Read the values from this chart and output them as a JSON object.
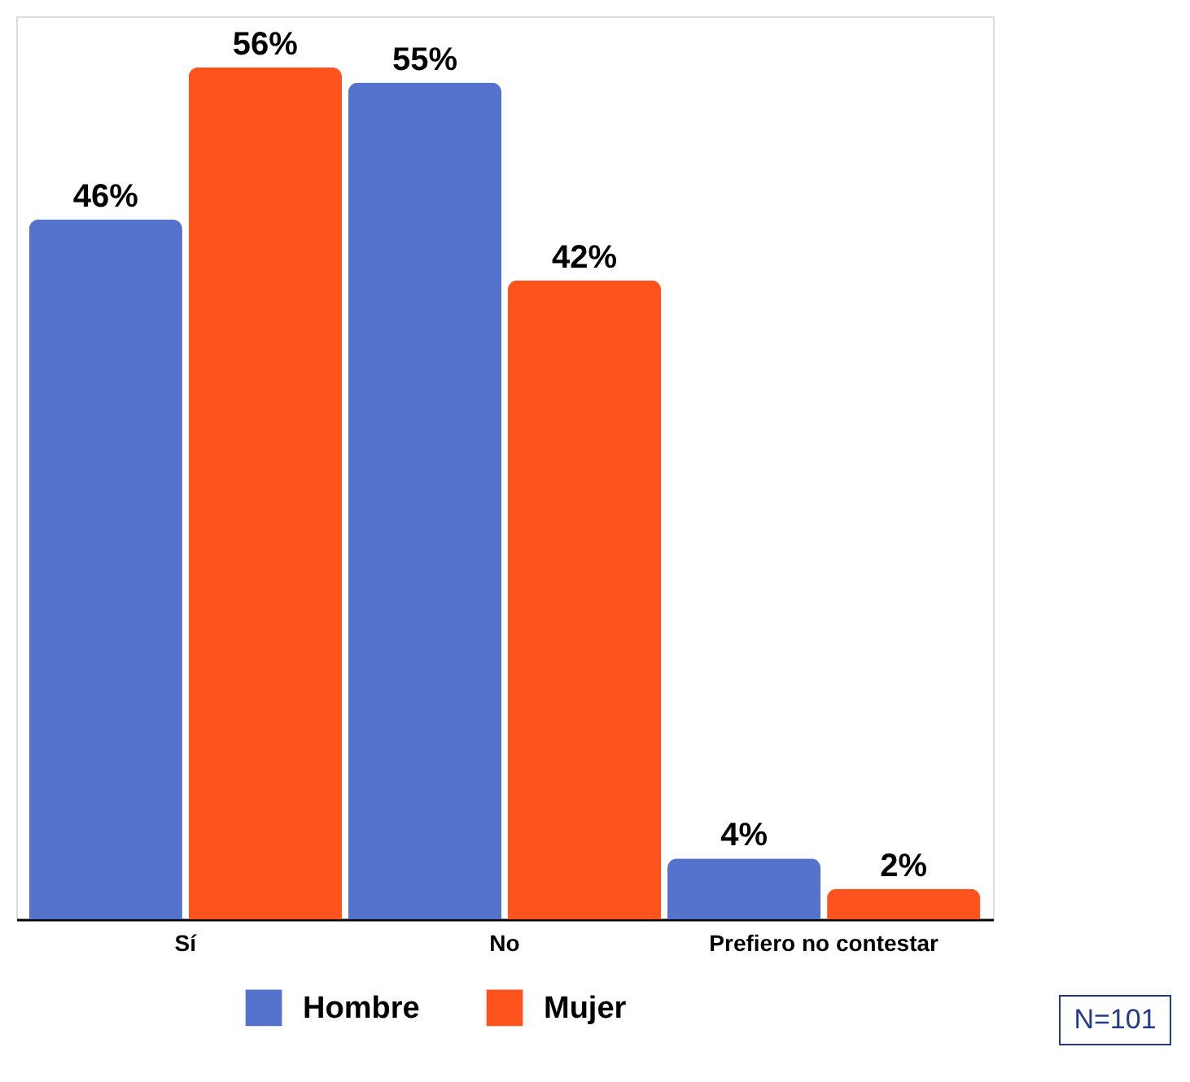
{
  "chart_data": {
    "type": "bar",
    "categories": [
      "Sí",
      "No",
      "Prefiero no contestar"
    ],
    "series": [
      {
        "name": "Hombre",
        "color": "#5572cd",
        "values": [
          46,
          55,
          4
        ],
        "value_labels": [
          "46%",
          "55%",
          "4%"
        ]
      },
      {
        "name": "Mujer",
        "color": "#ff531e",
        "values": [
          56,
          42,
          2
        ],
        "value_labels": [
          "56%",
          "42%",
          "2%"
        ]
      }
    ],
    "legend": "bottom",
    "grid": false,
    "tick_labels": "x",
    "annotations": [
      "N=101"
    ]
  }
}
